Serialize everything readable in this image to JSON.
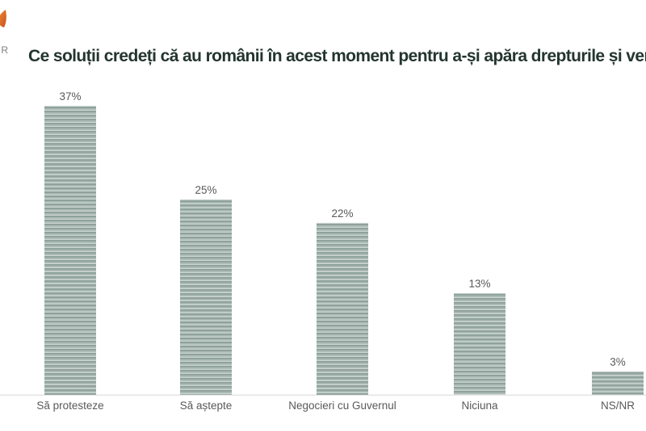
{
  "page": {
    "background": "#ffffff"
  },
  "logo": {
    "fragment_text": ".R",
    "flame_color": "#e07b28",
    "flame_color_dark": "#c9501e",
    "text_color": "#7d7f80",
    "note": "logo cut off by left edge of image"
  },
  "title": {
    "text": "Ce soluții credeți că au românii în acest moment pentru a-și apăra drepturile și veniturile",
    "color": "#243530"
  },
  "chart_data": {
    "type": "bar",
    "title": "Ce soluții credeți că au românii în acest moment pentru a-și apăra drepturile și veniturile",
    "categories": [
      "Să protesteze",
      "Să aștepte",
      "Negocieri cu Guvernul",
      "Niciuna",
      "NS/NR"
    ],
    "values": [
      37,
      25,
      22,
      13,
      3
    ],
    "value_labels": [
      "37%",
      "25%",
      "22%",
      "13%",
      "3%"
    ],
    "xlabel": "",
    "ylabel": "",
    "ylim": [
      0,
      40
    ],
    "grid": false,
    "legend": false,
    "bar_base_color": "#a3b3ae",
    "bar_stripe_light": "#cfd9d5",
    "bar_stripe_dark": "#889b95",
    "label_color": "#595959",
    "axis_line_color": "#d9d9d9"
  }
}
